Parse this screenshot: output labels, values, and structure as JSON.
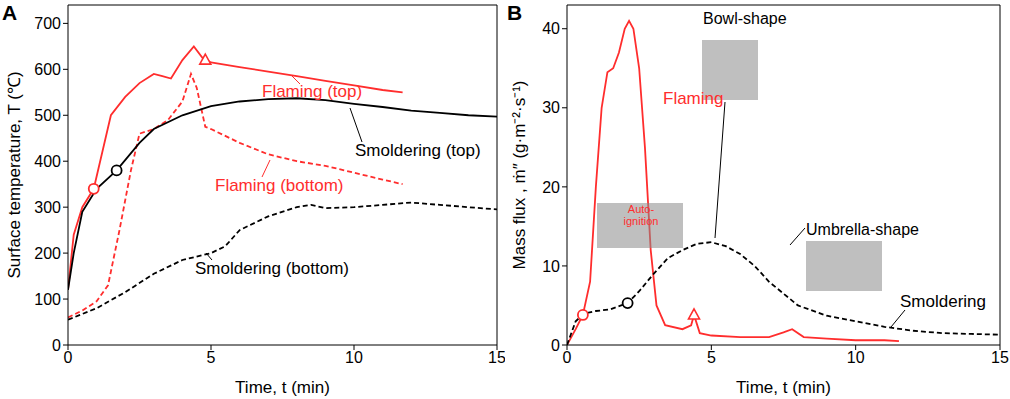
{
  "chart_data": [
    {
      "type": "line",
      "title": "A",
      "x_label": "Time, t (min)",
      "y_label": "Surface temperature, T (℃)",
      "xlim": [
        0,
        15
      ],
      "xticks": [
        0,
        5,
        10,
        15
      ],
      "ylim": [
        0,
        740
      ],
      "yticks": [
        0,
        100,
        200,
        300,
        400,
        500,
        600,
        700
      ],
      "series": [
        {
          "name": "Flaming (top)",
          "color": "#ff2d2d",
          "line_style": "solid",
          "x": [
            0,
            0.2,
            0.5,
            0.9,
            1.2,
            1.5,
            2,
            2.5,
            3,
            3.3,
            3.6,
            4,
            4.4,
            4.7,
            5,
            6,
            7,
            8,
            9,
            10,
            11,
            11.7
          ],
          "values": [
            120,
            240,
            300,
            340,
            420,
            500,
            540,
            570,
            590,
            585,
            580,
            620,
            650,
            625,
            615,
            605,
            595,
            585,
            575,
            565,
            555,
            550
          ],
          "points": [
            {
              "x": 0.9,
              "y": 340,
              "marker": "circle"
            },
            {
              "x": 4.8,
              "y": 620,
              "marker": "triangle"
            }
          ]
        },
        {
          "name": "Flaming (bottom)",
          "color": "#ff2d2d",
          "line_style": "dashed",
          "x": [
            0,
            0.5,
            1,
            1.4,
            1.8,
            2.2,
            2.5,
            3,
            3.5,
            4,
            4.3,
            4.5,
            4.8,
            5,
            6,
            7,
            8,
            9,
            10,
            11,
            11.7
          ],
          "values": [
            60,
            75,
            95,
            130,
            250,
            380,
            460,
            470,
            490,
            530,
            590,
            560,
            475,
            470,
            440,
            415,
            400,
            390,
            375,
            360,
            350
          ]
        },
        {
          "name": "Smoldering (top)",
          "color": "#000000",
          "line_style": "solid",
          "x": [
            0,
            0.2,
            0.5,
            1,
            1.7,
            2.5,
            3,
            4,
            5,
            6,
            7,
            8,
            9,
            10,
            11,
            12,
            13,
            14,
            15
          ],
          "values": [
            120,
            200,
            290,
            340,
            380,
            440,
            470,
            500,
            520,
            530,
            535,
            537,
            533,
            525,
            518,
            510,
            505,
            500,
            497
          ],
          "points": [
            {
              "x": 1.7,
              "y": 380,
              "marker": "circle"
            }
          ]
        },
        {
          "name": "Smoldering (bottom)",
          "color": "#000000",
          "line_style": "dashed",
          "x": [
            0,
            1,
            2,
            3,
            4,
            5,
            5.5,
            6,
            7,
            8,
            8.5,
            9,
            10,
            11,
            12,
            13,
            14,
            15
          ],
          "values": [
            55,
            80,
            115,
            155,
            185,
            200,
            215,
            250,
            280,
            300,
            305,
            298,
            300,
            305,
            310,
            305,
            300,
            295
          ]
        }
      ]
    },
    {
      "type": "line",
      "title": "B",
      "x_label": "Time, t (min)",
      "y_label": "Mass flux , ṁ″ (g·m⁻²·s⁻¹)",
      "xlim": [
        0,
        15
      ],
      "xticks": [
        0,
        5,
        10,
        15
      ],
      "ylim": [
        0,
        43
      ],
      "yticks": [
        0,
        10,
        20,
        30,
        40
      ],
      "annotations": [
        "Auto-ignition",
        "Bowl-shape",
        "Umbrella-shape"
      ],
      "series": [
        {
          "name": "Flaming",
          "color": "#ff2d2d",
          "line_style": "solid",
          "x": [
            0,
            0.3,
            0.55,
            0.8,
            1,
            1.2,
            1.4,
            1.6,
            1.8,
            2,
            2.15,
            2.3,
            2.5,
            2.7,
            2.9,
            3.1,
            3.4,
            4,
            4.3,
            4.4,
            4.6,
            5,
            6,
            7,
            7.5,
            7.8,
            8.2,
            9,
            10,
            11,
            11.5
          ],
          "values": [
            0,
            2,
            3.8,
            8,
            20,
            30,
            34.5,
            35,
            37,
            40,
            41,
            40,
            35,
            25,
            12,
            5,
            2.5,
            2,
            2.5,
            3.8,
            1.5,
            1.2,
            1,
            1,
            1.6,
            2,
            1,
            0.8,
            0.6,
            0.6,
            0.5
          ],
          "points": [
            {
              "x": 0.55,
              "y": 3.8,
              "marker": "circle"
            },
            {
              "x": 4.4,
              "y": 3.8,
              "marker": "triangle"
            }
          ]
        },
        {
          "name": "Smoldering",
          "color": "#000000",
          "line_style": "dashed",
          "x": [
            0,
            0.3,
            0.6,
            1,
            1.5,
            2.1,
            2.5,
            3,
            3.5,
            4,
            4.5,
            5,
            5.5,
            6,
            6.5,
            7,
            7.5,
            8,
            9,
            10,
            11,
            12,
            13,
            14,
            15
          ],
          "values": [
            0,
            3,
            4,
            4.3,
            4.5,
            5.3,
            6.8,
            9,
            11,
            12,
            12.8,
            13,
            12.5,
            11.5,
            10,
            8,
            6.5,
            5,
            3.7,
            3,
            2.3,
            1.8,
            1.5,
            1.4,
            1.3
          ],
          "points": [
            {
              "x": 2.1,
              "y": 5.3,
              "marker": "circle"
            }
          ]
        }
      ]
    }
  ]
}
